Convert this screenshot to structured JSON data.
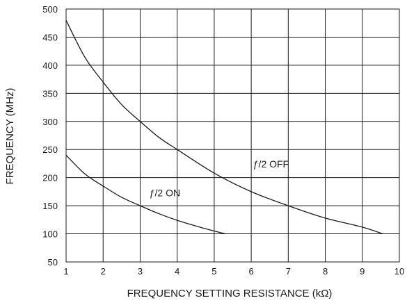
{
  "chart_data": {
    "type": "line",
    "title": "",
    "xlabel": "FREQUENCY SETTING RESISTANCE (kΩ)",
    "ylabel": "FREQUENCY (MHz)",
    "xlim": [
      1,
      10
    ],
    "ylim": [
      50,
      500
    ],
    "xticks": [
      1,
      2,
      3,
      4,
      5,
      6,
      7,
      8,
      9,
      10
    ],
    "yticks": [
      50,
      100,
      150,
      200,
      250,
      300,
      350,
      400,
      450,
      500
    ],
    "grid": true,
    "series": [
      {
        "name": "ƒ/2 OFF",
        "x": [
          1,
          1.5,
          2,
          2.5,
          3,
          3.5,
          4,
          5,
          6,
          7,
          8,
          9,
          9.55
        ],
        "y": [
          480,
          415,
          370,
          330,
          300,
          272,
          250,
          208,
          175,
          150,
          128,
          112,
          100
        ]
      },
      {
        "name": "ƒ/2 ON",
        "x": [
          1,
          1.5,
          2,
          2.5,
          3,
          3.5,
          4,
          4.5,
          5,
          5.3
        ],
        "y": [
          240,
          207,
          185,
          165,
          150,
          136,
          124,
          114,
          105,
          100
        ]
      }
    ],
    "annotations": [
      {
        "text": "ƒ/2 OFF",
        "x": 6.05,
        "y": 218
      },
      {
        "text": "ƒ/2 ON",
        "x": 3.25,
        "y": 167
      }
    ]
  }
}
